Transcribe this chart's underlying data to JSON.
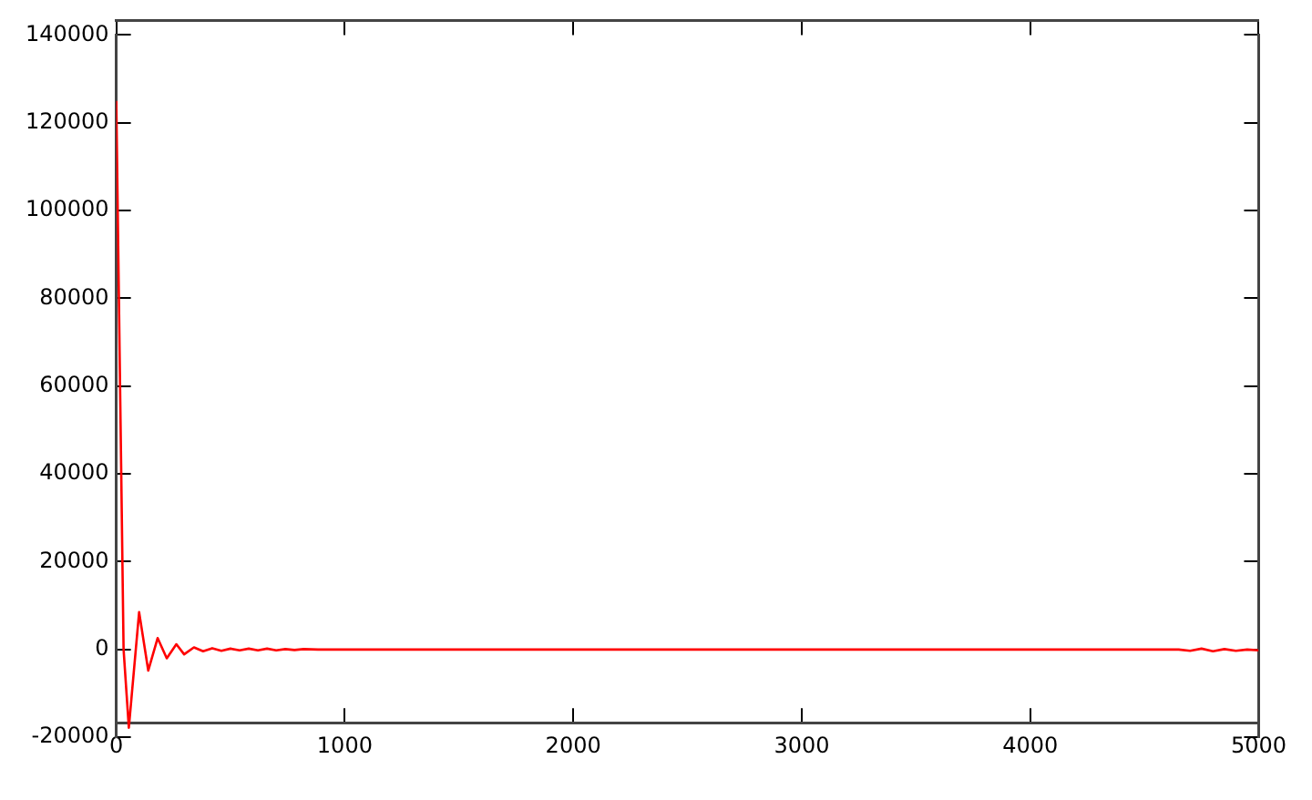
{
  "chart_data": {
    "type": "line",
    "x": [
      0,
      32,
      55,
      100,
      140,
      181,
      221,
      263,
      297,
      340,
      380,
      420,
      460,
      500,
      540,
      580,
      620,
      660,
      700,
      740,
      780,
      820,
      883,
      1000,
      2000,
      3000,
      4000,
      4650,
      4700,
      4750,
      4800,
      4850,
      4900,
      4950,
      5000
    ],
    "series": [
      {
        "color": "#ff0000",
        "values": [
          125000,
          0,
          -17800,
          8500,
          -4800,
          2600,
          -2000,
          1200,
          -1100,
          500,
          -400,
          300,
          -300,
          200,
          -200,
          200,
          -200,
          200,
          -200,
          100,
          -100,
          100,
          0,
          0,
          0,
          0,
          0,
          0,
          -300,
          200,
          -400,
          100,
          -300,
          0,
          -200
        ]
      }
    ],
    "xlim": [
      0,
      5000
    ],
    "xticks": [
      0,
      1000,
      2000,
      3000,
      4000,
      5000
    ],
    "ylim": [
      -20000,
      140000
    ],
    "yticks": [
      -20000,
      0,
      20000,
      40000,
      60000,
      80000,
      100000,
      120000,
      140000
    ],
    "grid": false,
    "legend": false,
    "marker": "none",
    "line_style": "solid"
  }
}
